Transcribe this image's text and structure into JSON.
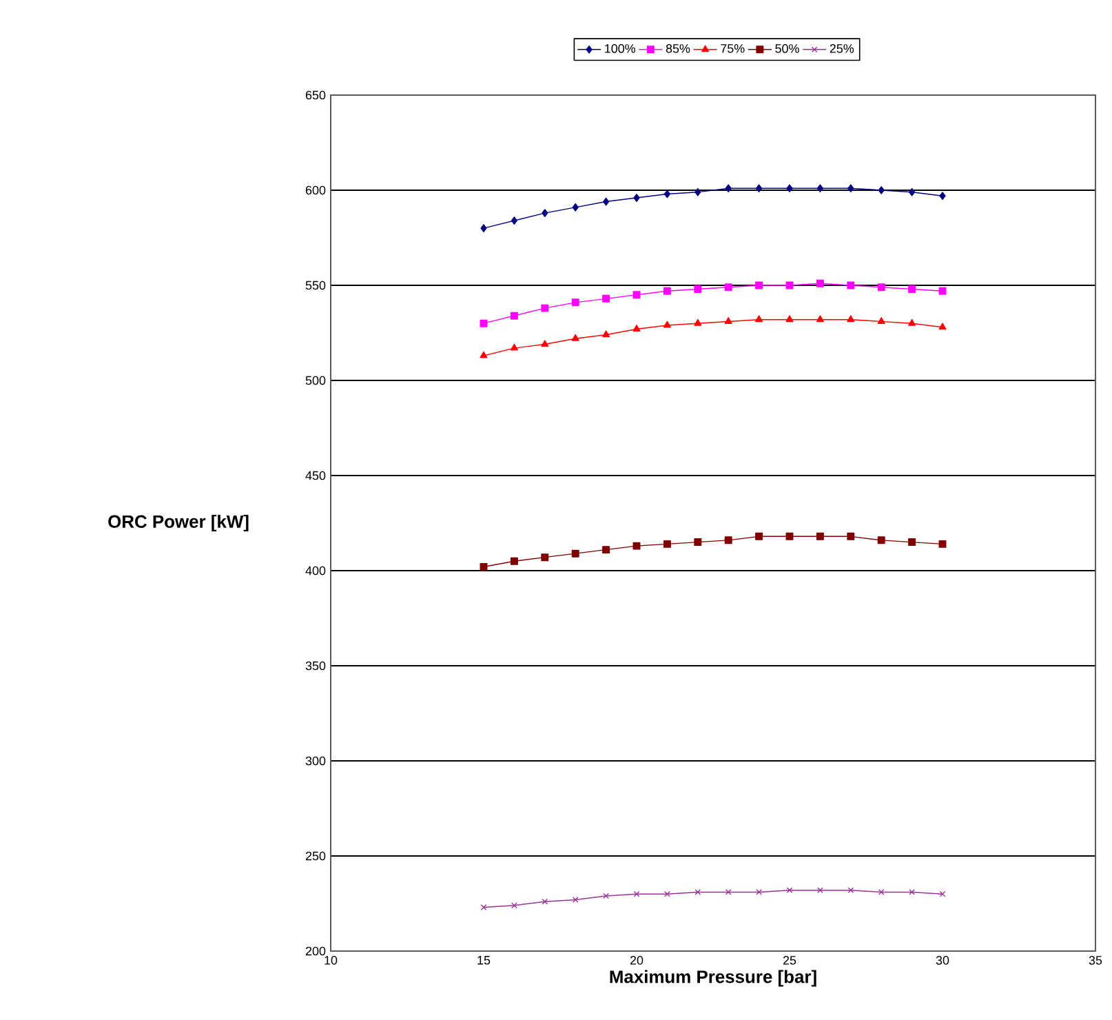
{
  "chart_data": {
    "type": "line",
    "xlabel": "Maximum Pressure [bar]",
    "ylabel": "ORC Power [kW]",
    "x": [
      15,
      16,
      17,
      18,
      19,
      20,
      21,
      22,
      23,
      24,
      25,
      26,
      27,
      28,
      29,
      30
    ],
    "series": [
      {
        "name": "100%",
        "color": "#000080",
        "marker": "diamond",
        "values": [
          580,
          584,
          588,
          591,
          594,
          596,
          598,
          599,
          601,
          601,
          601,
          601,
          601,
          600,
          599,
          597
        ]
      },
      {
        "name": "85%",
        "color": "#ff00ff",
        "marker": "square",
        "values": [
          530,
          534,
          538,
          541,
          543,
          545,
          547,
          548,
          549,
          550,
          550,
          551,
          550,
          549,
          548,
          547
        ]
      },
      {
        "name": "75%",
        "color": "#ff0000",
        "marker": "triangle",
        "values": [
          513,
          517,
          519,
          522,
          524,
          527,
          529,
          530,
          531,
          532,
          532,
          532,
          532,
          531,
          530,
          528
        ]
      },
      {
        "name": "50%",
        "color": "#800000",
        "marker": "square",
        "values": [
          402,
          405,
          407,
          409,
          411,
          413,
          414,
          415,
          416,
          418,
          418,
          418,
          418,
          416,
          415,
          414
        ]
      },
      {
        "name": "25%",
        "color": "#993399",
        "marker": "cross",
        "values": [
          223,
          224,
          226,
          227,
          229,
          230,
          230,
          231,
          231,
          231,
          232,
          232,
          232,
          231,
          231,
          230
        ]
      }
    ],
    "xlim": [
      10,
      35
    ],
    "xticks": [
      10,
      15,
      20,
      25,
      30,
      35
    ],
    "ylim": [
      200,
      650
    ],
    "yticks": [
      200,
      250,
      300,
      350,
      400,
      450,
      500,
      550,
      600,
      650
    ],
    "grid": "y",
    "legend": "top",
    "line_style": "solid"
  }
}
